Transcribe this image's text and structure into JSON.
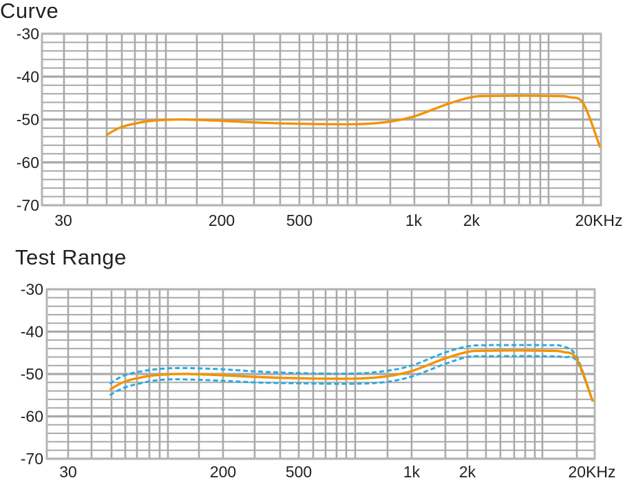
{
  "chart_data": [
    {
      "type": "line",
      "title": "Curve",
      "xscale": "log",
      "xlim": [
        20,
        28000
      ],
      "ylim": [
        -70,
        -30
      ],
      "grid": true,
      "x_tick_labels": [
        "30",
        "200",
        "500",
        "1k",
        "2k",
        "20KHz"
      ],
      "x_tick_values": [
        30,
        200,
        500,
        1000,
        2000,
        20000
      ],
      "y_tick_labels": [
        "-30",
        "-40",
        "-50",
        "-60",
        "-70"
      ],
      "y_tick_values": [
        -30,
        -40,
        -50,
        -60,
        -70
      ],
      "x": [
        50,
        60,
        80,
        100,
        130,
        200,
        300,
        500,
        700,
        850,
        1000,
        1500,
        2000,
        3000,
        10000,
        15000,
        20000,
        28000
      ],
      "series": [
        {
          "style": "solid",
          "color": "#f39200",
          "values": [
            -53.7,
            -51.8,
            -50.5,
            -50.1,
            -50.0,
            -50.3,
            -50.7,
            -51.0,
            -51.1,
            -50.6,
            -49.3,
            -46.4,
            -44.8,
            -44.5,
            -44.5,
            -44.8,
            -46.4,
            -56.5
          ]
        }
      ]
    },
    {
      "type": "line",
      "title": "Test Range",
      "xscale": "log",
      "xlim": [
        20,
        28000
      ],
      "ylim": [
        -70,
        -30
      ],
      "grid": true,
      "x_tick_labels": [
        "30",
        "200",
        "500",
        "1k",
        "2k",
        "20KHz"
      ],
      "x_tick_values": [
        30,
        200,
        500,
        1000,
        2000,
        20000
      ],
      "y_tick_labels": [
        "-30",
        "-40",
        "-50",
        "-60",
        "-70"
      ],
      "y_tick_values": [
        -30,
        -40,
        -50,
        -60,
        -70
      ],
      "x": [
        50,
        60,
        80,
        100,
        130,
        200,
        300,
        500,
        700,
        850,
        1000,
        1500,
        2000,
        3000,
        10000,
        15000,
        20000,
        28000
      ],
      "series": [
        {
          "style": "dashed",
          "color": "#29abe2",
          "values": [
            -52.3,
            -50.3,
            -49.1,
            -48.7,
            -48.6,
            -48.9,
            -49.4,
            -49.8,
            -49.9,
            -49.3,
            -48.0,
            -45.0,
            -43.5,
            -43.2,
            -43.2,
            -43.5,
            -46.0,
            -56.5
          ]
        },
        {
          "style": "dashed",
          "color": "#29abe2",
          "values": [
            -55.0,
            -53.2,
            -51.8,
            -51.3,
            -51.3,
            -51.6,
            -52.0,
            -52.2,
            -52.3,
            -51.9,
            -50.6,
            -47.7,
            -46.0,
            -45.8,
            -45.8,
            -46.0,
            -47.0,
            -56.5
          ]
        },
        {
          "style": "solid",
          "color": "#f39200",
          "values": [
            -53.7,
            -51.8,
            -50.5,
            -50.1,
            -50.0,
            -50.3,
            -50.7,
            -51.0,
            -51.1,
            -50.6,
            -49.3,
            -46.4,
            -44.8,
            -44.5,
            -44.5,
            -44.8,
            -46.5,
            -56.5
          ]
        }
      ]
    }
  ],
  "colors": {
    "grid": "#a9a9a9",
    "curve": "#f39200",
    "range": "#29abe2"
  }
}
